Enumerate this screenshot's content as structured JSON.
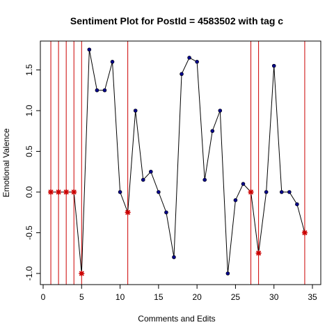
{
  "chart_data": {
    "type": "line",
    "title": "Sentiment Plot for PostId =  4583502  with tag  c",
    "xlabel": "Comments and Edits",
    "ylabel": "Emotional Valence",
    "xlim": [
      0,
      35
    ],
    "ylim": [
      -1.1,
      1.85
    ],
    "xticks": [
      0,
      5,
      10,
      15,
      20,
      25,
      30,
      35
    ],
    "yticks": [
      -1.0,
      -0.5,
      0.0,
      0.5,
      1.0,
      1.5
    ],
    "xtick_labels": [
      "0",
      "5",
      "10",
      "15",
      "20",
      "25",
      "30",
      "35"
    ],
    "ytick_labels": [
      "-1.0",
      "-0.5",
      "0.0",
      "0.5",
      "1.0",
      "1.5"
    ],
    "line_color": "#000000",
    "comment_point_color": "#00008b",
    "edit_point_color": "#cc0000",
    "vline_color": "#cc0000",
    "series": [
      {
        "x": [
          1,
          2,
          3,
          4,
          5,
          6,
          7,
          8,
          9,
          10,
          11,
          12,
          13,
          14,
          15,
          16,
          17,
          18,
          19,
          20,
          21,
          22,
          23,
          24,
          25,
          26,
          27,
          28,
          29,
          30,
          31,
          32,
          33,
          34
        ],
        "values": [
          0,
          0,
          0,
          0,
          -1.0,
          1.75,
          1.25,
          1.25,
          1.6,
          0,
          -0.25,
          1.0,
          0.15,
          0.25,
          0,
          -0.25,
          -0.8,
          1.45,
          1.65,
          1.6,
          0.15,
          0.75,
          1.0,
          -1.0,
          -0.1,
          0.1,
          0,
          -0.75,
          0,
          1.55,
          0,
          0,
          -0.15,
          -0.5
        ],
        "kinds": [
          "edit",
          "edit",
          "edit",
          "edit",
          "edit",
          "comment",
          "comment",
          "comment",
          "comment",
          "comment",
          "edit",
          "comment",
          "comment",
          "comment",
          "comment",
          "comment",
          "comment",
          "comment",
          "comment",
          "comment",
          "comment",
          "comment",
          "comment",
          "comment",
          "comment",
          "comment",
          "edit",
          "edit",
          "comment",
          "comment",
          "comment",
          "comment",
          "comment",
          "edit"
        ]
      }
    ],
    "edit_lines_x": [
      1,
      2,
      3,
      4,
      5,
      11,
      27,
      28,
      34
    ]
  }
}
